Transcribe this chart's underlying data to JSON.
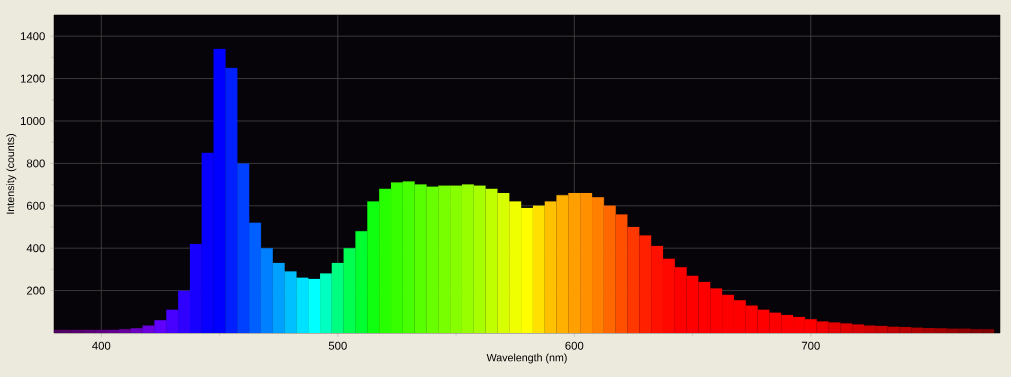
{
  "chart_data": {
    "type": "bar",
    "xlabel": "Wavelength (nm)",
    "ylabel": "Intensity (counts)",
    "xlim": [
      380,
      780
    ],
    "ylim": [
      0,
      1500
    ],
    "xticks": [
      400,
      500,
      600,
      700
    ],
    "yticks": [
      200,
      400,
      600,
      800,
      1000,
      1200,
      1400
    ],
    "grid": true,
    "x": [
      380,
      385,
      390,
      395,
      400,
      405,
      410,
      415,
      420,
      425,
      430,
      435,
      440,
      445,
      450,
      455,
      460,
      465,
      470,
      475,
      480,
      485,
      490,
      495,
      500,
      505,
      510,
      515,
      520,
      525,
      530,
      535,
      540,
      545,
      550,
      555,
      560,
      565,
      570,
      575,
      580,
      585,
      590,
      595,
      600,
      605,
      610,
      615,
      620,
      625,
      630,
      635,
      640,
      645,
      650,
      655,
      660,
      665,
      670,
      675,
      680,
      685,
      690,
      695,
      700,
      705,
      710,
      715,
      720,
      725,
      730,
      735,
      740,
      745,
      750,
      755,
      760,
      765,
      770,
      775
    ],
    "values": [
      15,
      15,
      15,
      15,
      15,
      15,
      18,
      22,
      35,
      60,
      110,
      200,
      420,
      850,
      1340,
      1250,
      800,
      520,
      400,
      330,
      290,
      260,
      255,
      280,
      330,
      400,
      480,
      620,
      680,
      710,
      715,
      700,
      690,
      695,
      695,
      700,
      695,
      680,
      660,
      620,
      590,
      600,
      620,
      650,
      660,
      660,
      640,
      600,
      560,
      500,
      460,
      410,
      350,
      310,
      270,
      240,
      210,
      180,
      155,
      130,
      110,
      95,
      85,
      75,
      65,
      55,
      50,
      45,
      40,
      35,
      33,
      30,
      28,
      25,
      23,
      22,
      20,
      20,
      18,
      18
    ],
    "colors": [
      "#500060",
      "#540068",
      "#580070",
      "#5c0078",
      "#600080",
      "#640090",
      "#6800a0",
      "#6a00c0",
      "#6a00e0",
      "#6000ff",
      "#4800ff",
      "#3000ff",
      "#1800ff",
      "#0800ff",
      "#0000ff",
      "#0020ff",
      "#0040ff",
      "#0060ff",
      "#0080ff",
      "#00a0ff",
      "#00c0ff",
      "#00e0ff",
      "#00ffff",
      "#00ffc0",
      "#00ff80",
      "#00ff50",
      "#00ff30",
      "#10ff10",
      "#28ff00",
      "#38ff00",
      "#48ff00",
      "#58ff00",
      "#68ff00",
      "#78ff00",
      "#88ff00",
      "#98ff00",
      "#a8ff00",
      "#c0ff00",
      "#d8ff00",
      "#f0ff00",
      "#ffff00",
      "#ffe000",
      "#ffc000",
      "#ffb000",
      "#ffa000",
      "#ff9000",
      "#ff8000",
      "#ff6800",
      "#ff5000",
      "#ff3800",
      "#ff2000",
      "#ff1000",
      "#ff0800",
      "#ff0000",
      "#ff0000",
      "#ff0000",
      "#ff0000",
      "#ff0000",
      "#ff0000",
      "#ff0000",
      "#ff0000",
      "#ff0000",
      "#ff0000",
      "#ff0000",
      "#ff0000",
      "#f00000",
      "#e80000",
      "#e00000",
      "#d80000",
      "#d00000",
      "#c80000",
      "#c00000",
      "#b80000",
      "#b00000",
      "#a80000",
      "#a00000",
      "#980000",
      "#900000",
      "#880000",
      "#800000"
    ]
  }
}
